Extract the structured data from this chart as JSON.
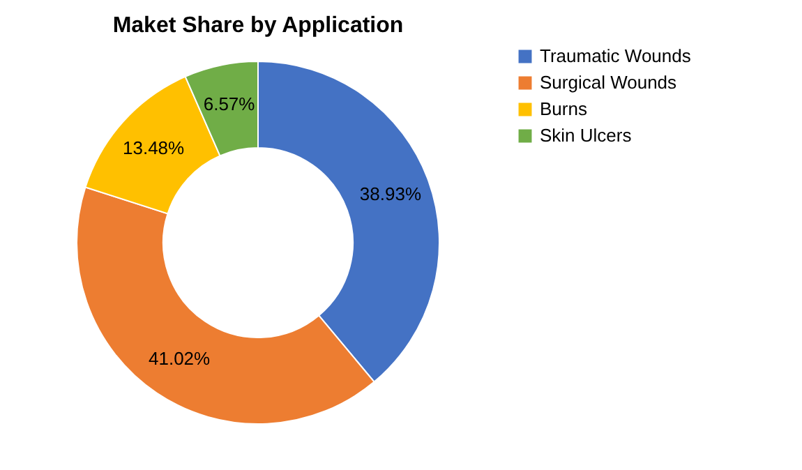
{
  "chart_data": {
    "type": "donut",
    "title": "Maket Share by Application",
    "categories": [
      "Traumatic Wounds",
      "Surgical Wounds",
      "Burns",
      "Skin Ulcers"
    ],
    "values": [
      38.93,
      41.02,
      13.48,
      6.57
    ],
    "value_labels": [
      "38.93%",
      "41.02%",
      "13.48%",
      "6.57%"
    ],
    "colors": [
      "#4472c4",
      "#ed7d31",
      "#ffc000",
      "#70ad47"
    ],
    "legend": "right"
  }
}
